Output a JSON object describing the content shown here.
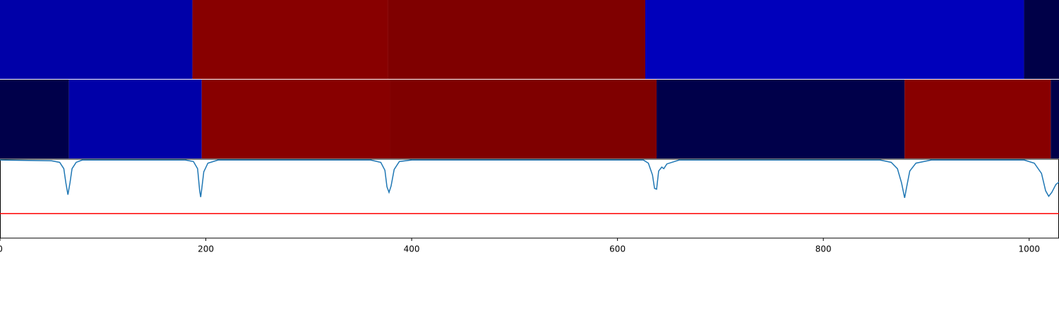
{
  "chart_data": {
    "type": "segmented-line",
    "xlim": [
      0,
      1029
    ],
    "xticks": [
      0,
      200,
      400,
      600,
      800,
      1000
    ],
    "strips": [
      {
        "segments": [
          {
            "start": 0,
            "end": 187,
            "color": "#0000a8"
          },
          {
            "start": 187,
            "end": 377,
            "color": "#880000"
          },
          {
            "start": 377,
            "end": 627,
            "color": "#7f0000"
          },
          {
            "start": 627,
            "end": 995,
            "color": "#0000bb"
          },
          {
            "start": 995,
            "end": 1029,
            "color": "#000048"
          }
        ]
      },
      {
        "segments": [
          {
            "start": 0,
            "end": 67,
            "color": "#00004a"
          },
          {
            "start": 67,
            "end": 196,
            "color": "#0000a8"
          },
          {
            "start": 196,
            "end": 379,
            "color": "#880000"
          },
          {
            "start": 379,
            "end": 638,
            "color": "#7f0000"
          },
          {
            "start": 638,
            "end": 879,
            "color": "#00004a"
          },
          {
            "start": 879,
            "end": 1021,
            "color": "#880000"
          },
          {
            "start": 1021,
            "end": 1029,
            "color": "#00004a"
          }
        ]
      }
    ],
    "ylim": [
      0,
      1
    ],
    "series": [
      {
        "color": "#1f77b4",
        "x": [
          0,
          50,
          58,
          62,
          64,
          66,
          68,
          70,
          74,
          80,
          180,
          188,
          192,
          194,
          195,
          196,
          198,
          202,
          212,
          360,
          370,
          374,
          376,
          378,
          380,
          383,
          388,
          400,
          625,
          630,
          634,
          636,
          638,
          640,
          643,
          645,
          648,
          660,
          855,
          866,
          872,
          876,
          879,
          881,
          884,
          890,
          905,
          995,
          1005,
          1012,
          1016,
          1019,
          1022,
          1026,
          1029
        ],
        "values": [
          0.99,
          0.98,
          0.96,
          0.88,
          0.7,
          0.55,
          0.7,
          0.88,
          0.96,
          0.99,
          0.99,
          0.97,
          0.88,
          0.6,
          0.52,
          0.62,
          0.84,
          0.95,
          0.99,
          0.99,
          0.96,
          0.86,
          0.65,
          0.58,
          0.66,
          0.87,
          0.97,
          0.99,
          0.99,
          0.95,
          0.8,
          0.63,
          0.62,
          0.85,
          0.9,
          0.88,
          0.94,
          0.99,
          0.99,
          0.96,
          0.88,
          0.7,
          0.51,
          0.65,
          0.85,
          0.95,
          0.99,
          0.99,
          0.95,
          0.82,
          0.6,
          0.53,
          0.58,
          0.68,
          0.71
        ]
      }
    ],
    "hline": {
      "value": 0.31,
      "color": "#ff0000"
    }
  }
}
